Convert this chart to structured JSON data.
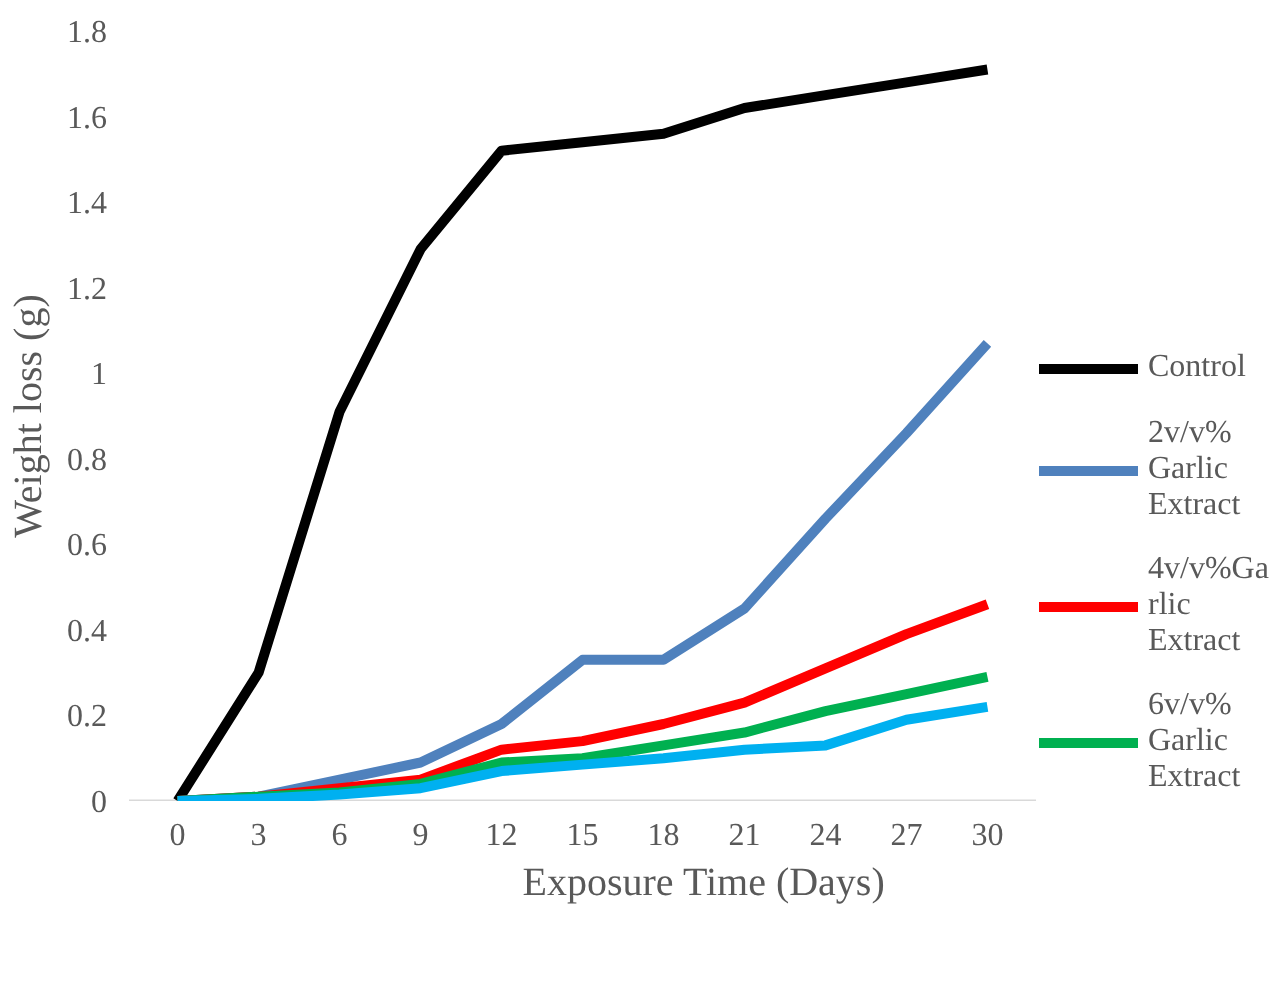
{
  "chart_data": {
    "type": "line",
    "xlabel": "Exposure Time (Days)",
    "ylabel": "Weight loss (g)",
    "categories": [
      "0",
      "3",
      "6",
      "9",
      "12",
      "15",
      "18",
      "21",
      "24",
      "27",
      "30"
    ],
    "ylim": [
      0,
      1.8
    ],
    "yticks": [
      0,
      0.2,
      0.4,
      0.6,
      0.8,
      1,
      1.2,
      1.4,
      1.6,
      1.8
    ],
    "legend": "right",
    "series": [
      {
        "name": "Control",
        "color": "#000000",
        "values": [
          0,
          0.3,
          0.91,
          1.29,
          1.52,
          1.54,
          1.56,
          1.62,
          1.65,
          1.68,
          1.71
        ]
      },
      {
        "name": "2v/v% Garlic Extract",
        "color": "#4f81bd",
        "values": [
          0,
          0.01,
          0.05,
          0.09,
          0.18,
          0.33,
          0.33,
          0.45,
          0.66,
          0.86,
          1.07
        ]
      },
      {
        "name": "4v/v%Garlic Extract",
        "color": "#ff0000",
        "values": [
          0,
          0.01,
          0.03,
          0.05,
          0.12,
          0.14,
          0.18,
          0.23,
          0.31,
          0.39,
          0.46
        ]
      },
      {
        "name": "6v/v% Garlic Extract",
        "color": "#00b050",
        "values": [
          0,
          0.01,
          0.02,
          0.04,
          0.09,
          0.1,
          0.13,
          0.16,
          0.21,
          0.25,
          0.29
        ]
      },
      {
        "color": "#00b0f0",
        "values": [
          0,
          0.005,
          0.015,
          0.03,
          0.07,
          0.085,
          0.1,
          0.12,
          0.13,
          0.19,
          0.22
        ]
      }
    ]
  }
}
